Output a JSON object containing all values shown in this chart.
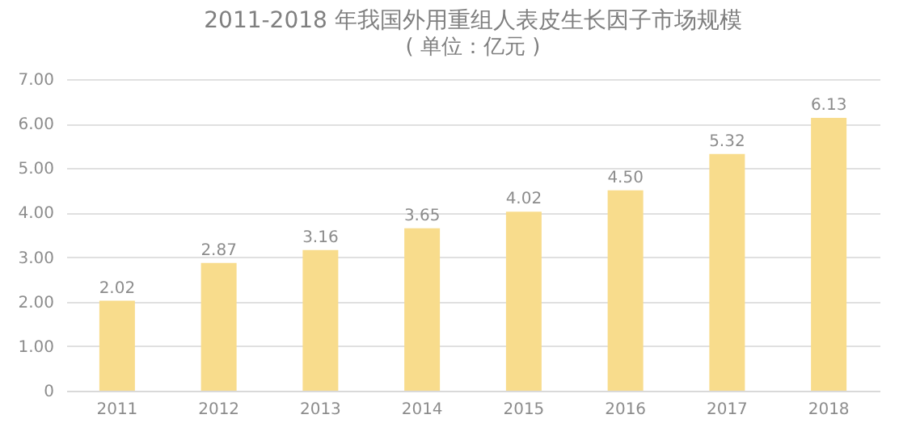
{
  "chart_data": {
    "type": "bar",
    "title": "2011-2018 年我国外用重组人表皮生长因子市场规模",
    "subtitle": "( 单位：亿元 )",
    "categories": [
      "2011",
      "2012",
      "2013",
      "2014",
      "2015",
      "2016",
      "2017",
      "2018"
    ],
    "values": [
      2.02,
      2.87,
      3.16,
      3.65,
      4.02,
      4.5,
      5.32,
      6.13
    ],
    "value_labels": [
      "2.02",
      "2.87",
      "3.16",
      "3.65",
      "4.02",
      "4.50",
      "5.32",
      "6.13"
    ],
    "color": "#f8dc8c",
    "ylim": [
      0,
      7
    ],
    "yticks": [
      0,
      {
        "value": 1,
        "label": "1.00"
      },
      {
        "value": 2,
        "label": "2.00"
      },
      {
        "value": 3,
        "label": "3.00"
      },
      {
        "value": 4,
        "label": "4.00"
      },
      {
        "value": 5,
        "label": "5.00"
      },
      {
        "value": 6,
        "label": "6.00"
      },
      {
        "value": 7,
        "label": "7.00"
      }
    ],
    "grid": "y"
  }
}
